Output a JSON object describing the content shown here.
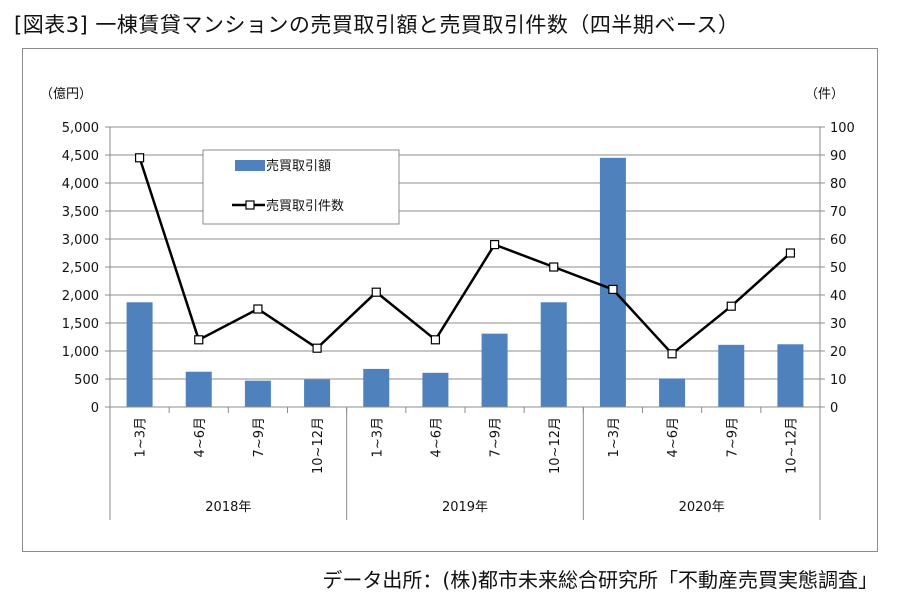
{
  "title": "[図表3] 一棟賃貸マンションの売買取引額と売買取引件数（四半期ベース）",
  "source": "データ出所：(株)都市未来総合研究所「不動産売買実態調査」",
  "colors": {
    "bar": "#4f81bd",
    "line": "#000000",
    "grid": "#8c8c8c",
    "marker_fill": "#ffffff"
  },
  "chart_data": {
    "type": "bar",
    "left_unit": "（億円）",
    "right_unit": "（件）",
    "left_ticks": [
      "0",
      "500",
      "1,000",
      "1,500",
      "2,000",
      "2,500",
      "3,000",
      "3,500",
      "4,000",
      "4,500",
      "5,000"
    ],
    "right_ticks": [
      "0",
      "10",
      "20",
      "30",
      "40",
      "50",
      "60",
      "70",
      "80",
      "90",
      "100"
    ],
    "ylim_left": [
      0,
      5000
    ],
    "ylim_right": [
      0,
      100
    ],
    "categories": [
      "1~3月",
      "4~6月",
      "7~9月",
      "10~12月",
      "1~3月",
      "4~6月",
      "7~9月",
      "10~12月",
      "1~3月",
      "4~6月",
      "7~9月",
      "10~12月"
    ],
    "groups": [
      "2018年",
      "2019年",
      "2020年"
    ],
    "grid": true,
    "legend_position": "top-left",
    "series": [
      {
        "name": "売買取引額",
        "type": "bar",
        "axis": "left",
        "values": [
          1870,
          630,
          470,
          490,
          680,
          610,
          1310,
          1870,
          4450,
          510,
          1110,
          1120
        ]
      },
      {
        "name": "売買取引件数",
        "type": "line",
        "axis": "right",
        "values": [
          89,
          24,
          35,
          21,
          41,
          24,
          58,
          50,
          42,
          19,
          36,
          55
        ]
      }
    ]
  }
}
